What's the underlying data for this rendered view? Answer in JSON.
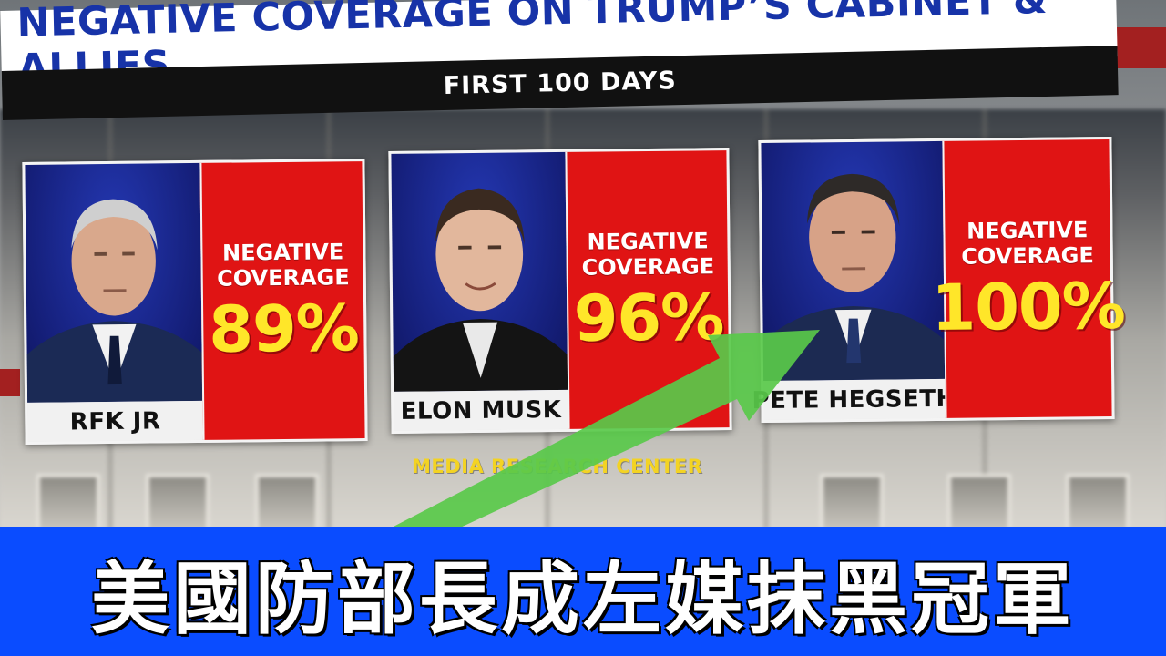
{
  "header": {
    "title": "NEGATIVE COVERAGE ON TRUMP’S CABINET & ALLIES",
    "subtitle": "FIRST 100 DAYS"
  },
  "cards": [
    {
      "name": "RFK JR",
      "label": "NEGATIVE\nCOVERAGE",
      "value": "89%",
      "value_fraction": 0.89
    },
    {
      "name": "ELON MUSK",
      "label": "NEGATIVE\nCOVERAGE",
      "value": "96%",
      "value_fraction": 0.96
    },
    {
      "name": "PETE HEGSETH",
      "label": "NEGATIVE\nCOVERAGE",
      "value": "100%",
      "value_fraction": 1.0
    }
  ],
  "source": "MEDIA RESEARCH CENTER",
  "caption": "美國防部長成左媒抹黑冠軍",
  "colors": {
    "title_blue": "#1733a8",
    "stat_red": "#e01414",
    "stat_yellow": "#ffe629",
    "caption_blue": "#0a4cff",
    "arrow_green": "#59c94a",
    "photo_blue": "#1a2a9a"
  }
}
